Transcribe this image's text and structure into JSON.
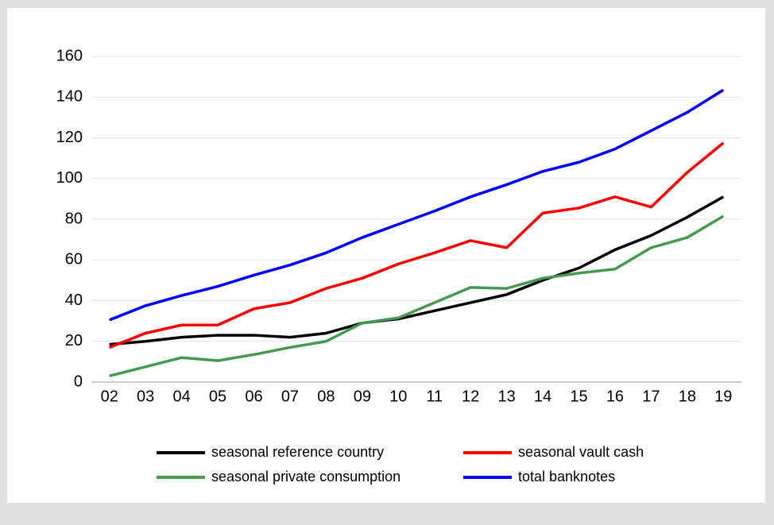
{
  "chart_data": {
    "type": "line",
    "categories": [
      "02",
      "03",
      "04",
      "05",
      "06",
      "07",
      "08",
      "09",
      "10",
      "11",
      "12",
      "13",
      "14",
      "15",
      "16",
      "17",
      "18",
      "19"
    ],
    "series": [
      {
        "name": "seasonal reference country",
        "color": "#000000",
        "values": [
          18.5,
          20,
          22,
          23,
          23,
          22,
          24,
          29,
          31,
          35,
          39,
          43,
          50,
          56,
          65,
          72,
          81,
          91
        ]
      },
      {
        "name": "seasonal vault cash",
        "color": "#ff0000",
        "values": [
          17,
          24,
          28,
          28,
          36,
          39,
          46,
          51,
          58,
          63.5,
          69.5,
          66,
          83,
          85.5,
          91,
          86,
          103,
          117.5
        ]
      },
      {
        "name": "seasonal private consumption",
        "color": "#46994f",
        "values": [
          3,
          7.5,
          12,
          10.5,
          13.5,
          17,
          20,
          29,
          31.5,
          39,
          46.5,
          46,
          51,
          53.5,
          55.5,
          66,
          71,
          81.5
        ]
      },
      {
        "name": "total banknotes",
        "color": "#0000ff",
        "values": [
          30.5,
          37.5,
          42.5,
          47,
          52.5,
          57.5,
          63.5,
          71,
          77.5,
          84,
          91,
          97,
          103.5,
          108,
          114.5,
          123.5,
          132.5,
          143.5
        ]
      }
    ],
    "ylim": [
      0,
      160
    ],
    "yticks": [
      0,
      20,
      40,
      60,
      80,
      100,
      120,
      140,
      160
    ],
    "grid": true
  }
}
